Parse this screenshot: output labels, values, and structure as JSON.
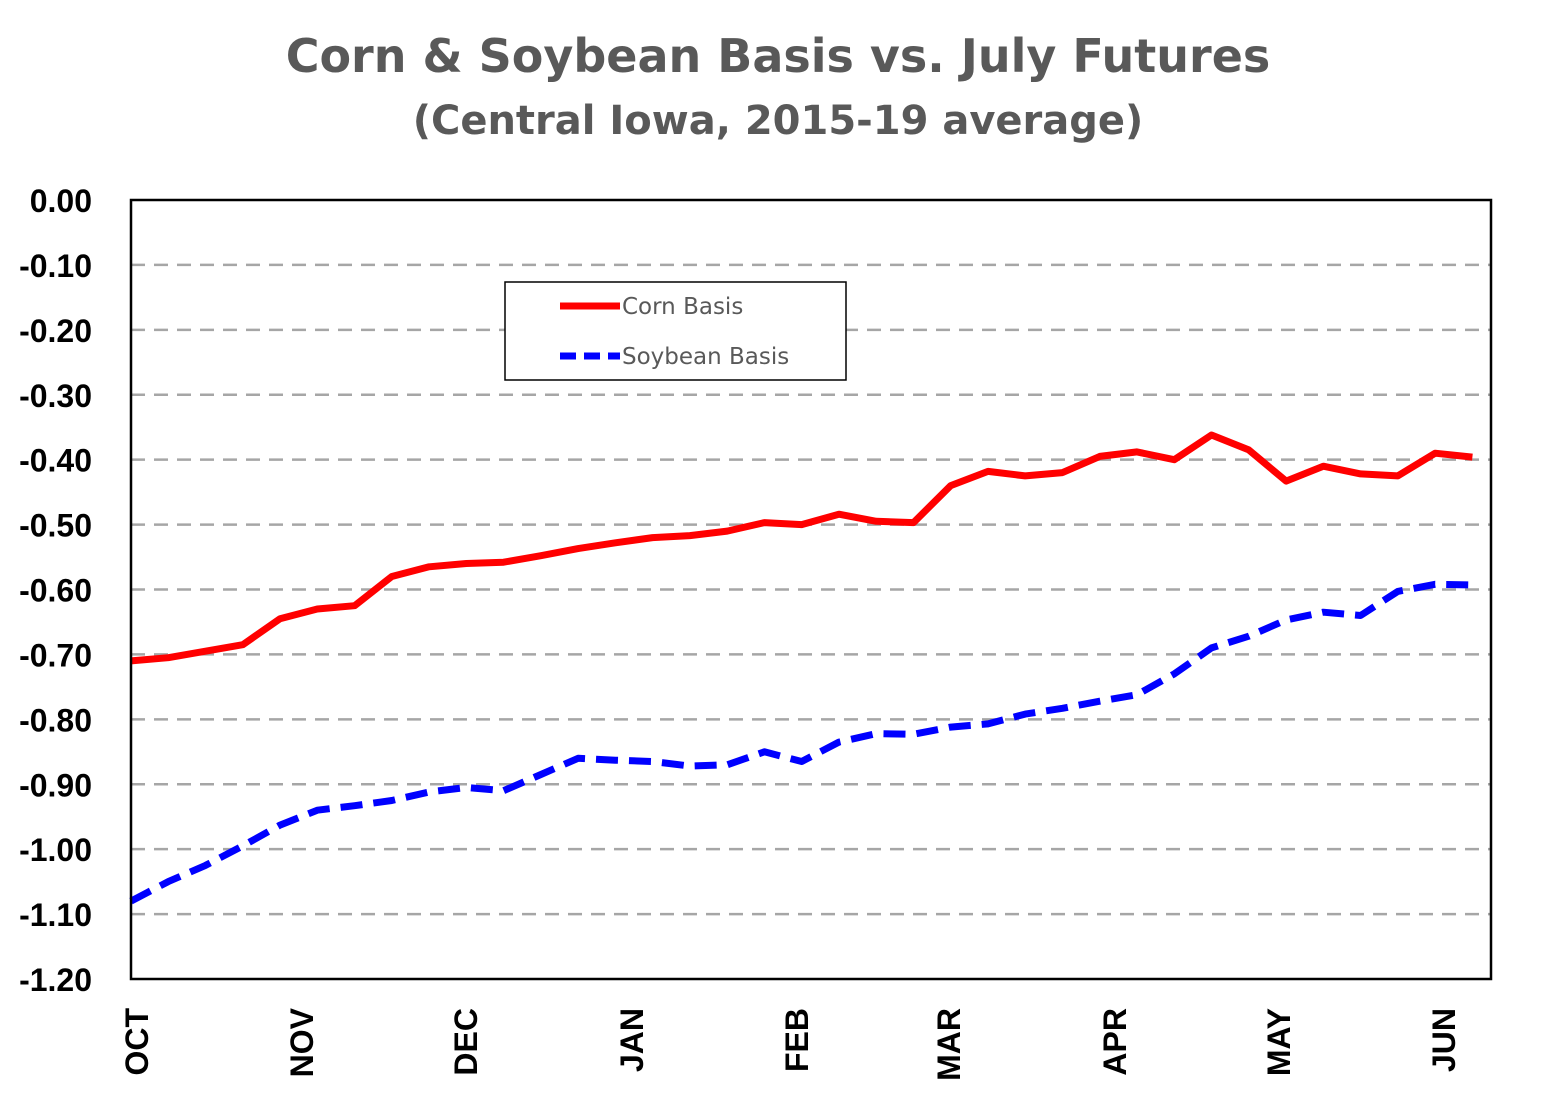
{
  "chart_data": {
    "type": "line",
    "title": "Corn & Soybean Basis vs. July Futures",
    "subtitle": "(Central Iowa, 2015-19 average)",
    "xlabel": "",
    "ylabel": "",
    "ylim": [
      -1.2,
      0.0
    ],
    "y_ticks": [
      "0.00",
      "-0.10",
      "-0.20",
      "-0.30",
      "-0.40",
      "-0.50",
      "-0.60",
      "-0.70",
      "-0.80",
      "-0.90",
      "-1.00",
      "-1.10",
      "-1.20"
    ],
    "month_labels": [
      "OCT",
      "NOV",
      "DEC",
      "JAN",
      "FEB",
      "MAR",
      "APR",
      "MAY",
      "JUN"
    ],
    "grid": "horizontal-dashed",
    "legend_position": "top-left-inside",
    "series": [
      {
        "name": "Corn Basis",
        "color": "#FF0000",
        "style": "solid",
        "values": [
          -0.71,
          -0.705,
          -0.695,
          -0.685,
          -0.645,
          -0.63,
          -0.625,
          -0.58,
          -0.565,
          -0.56,
          -0.558,
          -0.548,
          -0.537,
          -0.528,
          -0.52,
          -0.517,
          -0.51,
          -0.497,
          -0.5,
          -0.484,
          -0.495,
          -0.497,
          -0.44,
          -0.418,
          -0.425,
          -0.42,
          -0.395,
          -0.388,
          -0.4,
          -0.362,
          -0.385,
          -0.433,
          -0.41,
          -0.422,
          -0.425,
          -0.39,
          -0.396
        ]
      },
      {
        "name": "Soybean Basis",
        "color": "#0000FF",
        "style": "dashed",
        "values": [
          -1.08,
          -1.05,
          -1.025,
          -0.995,
          -0.963,
          -0.94,
          -0.933,
          -0.925,
          -0.912,
          -0.905,
          -0.91,
          -0.885,
          -0.86,
          -0.863,
          -0.865,
          -0.872,
          -0.87,
          -0.85,
          -0.865,
          -0.835,
          -0.822,
          -0.823,
          -0.812,
          -0.807,
          -0.792,
          -0.783,
          -0.772,
          -0.762,
          -0.73,
          -0.69,
          -0.672,
          -0.647,
          -0.635,
          -0.64,
          -0.603,
          -0.592,
          -0.593
        ]
      }
    ]
  }
}
